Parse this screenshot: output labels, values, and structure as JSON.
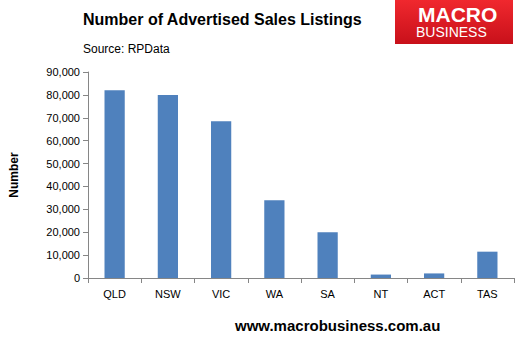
{
  "chart_data": {
    "type": "bar",
    "title": "Number of Advertised Sales Listings",
    "subtitle": "Source: RPData",
    "ylabel": "Number",
    "categories": [
      "QLD",
      "NSW",
      "VIC",
      "WA",
      "SA",
      "NT",
      "ACT",
      "TAS"
    ],
    "values": [
      82000,
      80000,
      68500,
      34000,
      20000,
      1500,
      2000,
      11500
    ],
    "color": "#4f81bd",
    "ylim": [
      0,
      90000
    ],
    "yticks": [
      0,
      {
        "value": 10000,
        "label": "10,000"
      },
      {
        "value": 20000,
        "label": "20,000"
      },
      {
        "value": 30000,
        "label": "30,000"
      },
      {
        "value": 40000,
        "label": "40,000"
      },
      {
        "value": 50000,
        "label": "50,000"
      },
      {
        "value": 60000,
        "label": "60,000"
      },
      {
        "value": 70000,
        "label": "70,000"
      },
      {
        "value": 80000,
        "label": "80,000"
      },
      {
        "value": 90000,
        "label": "90,000"
      }
    ],
    "grid": false,
    "annotations": [
      "MACRO",
      "BUSINESS",
      "www.macrobusiness.com.au"
    ]
  }
}
